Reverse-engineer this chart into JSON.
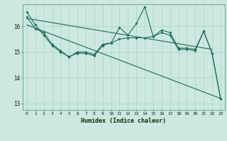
{
  "xlabel": "Humidex (Indice chaleur)",
  "bg_color": "#cce8e0",
  "grid_color": "#aad4c8",
  "line_color": "#1a6b5a",
  "xlim": [
    -0.5,
    23.5
  ],
  "ylim": [
    12.75,
    16.85
  ],
  "yticks": [
    13,
    14,
    15,
    16
  ],
  "xticks": [
    0,
    1,
    2,
    3,
    4,
    5,
    6,
    7,
    8,
    9,
    10,
    11,
    12,
    13,
    14,
    15,
    16,
    17,
    18,
    19,
    20,
    21,
    22,
    23
  ],
  "line1_x": [
    0,
    1,
    2,
    3,
    4,
    5,
    6,
    7,
    8,
    9,
    10,
    11,
    12,
    13,
    14,
    15,
    16,
    17,
    18,
    19,
    20,
    21,
    22,
    23
  ],
  "line1_y": [
    16.55,
    16.05,
    15.65,
    15.25,
    15.0,
    14.82,
    14.95,
    14.95,
    14.85,
    15.25,
    15.35,
    15.5,
    15.55,
    15.55,
    15.55,
    15.6,
    15.75,
    15.65,
    15.1,
    15.1,
    15.05,
    15.8,
    14.95,
    13.2
  ],
  "line2_x": [
    0,
    1,
    2,
    3,
    4,
    5,
    6,
    7,
    8,
    9,
    10,
    11,
    12,
    13,
    14,
    15,
    16,
    17,
    18,
    19,
    20,
    21,
    22,
    23
  ],
  "line2_y": [
    16.35,
    15.9,
    15.75,
    15.3,
    15.05,
    14.8,
    15.0,
    15.0,
    14.9,
    15.3,
    15.35,
    15.95,
    15.65,
    16.1,
    16.75,
    15.6,
    15.85,
    15.75,
    15.15,
    15.15,
    15.1,
    15.8,
    14.95,
    13.2
  ],
  "line3": [
    [
      0,
      22
    ],
    [
      16.3,
      15.1
    ]
  ],
  "line4": [
    [
      0,
      23
    ],
    [
      16.05,
      13.2
    ]
  ]
}
